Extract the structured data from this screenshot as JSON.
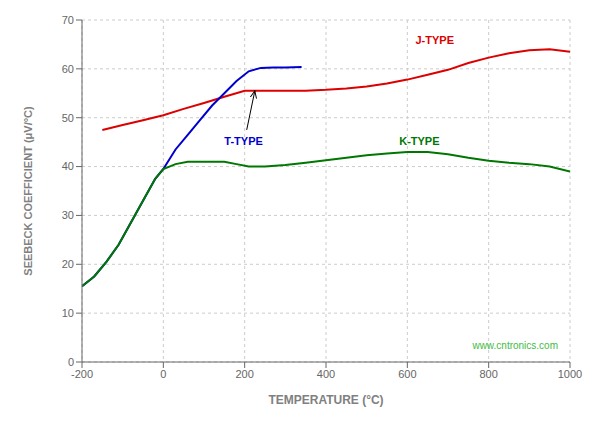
{
  "chart_data": {
    "type": "line",
    "x_label": "TEMPERATURE (°C)",
    "y_label": "SEEBECK COEFFICIENT (μV/°C)",
    "xlim": [
      -200,
      1000
    ],
    "ylim": [
      0,
      70
    ],
    "xticks": [
      -200,
      0,
      200,
      400,
      600,
      800,
      1000
    ],
    "yticks": [
      0,
      10,
      20,
      30,
      40,
      50,
      60,
      70
    ],
    "grid": true,
    "series": [
      {
        "color": "#dd0000",
        "x": [
          -150,
          -100,
          -50,
          0,
          50,
          100,
          150,
          200,
          250,
          300,
          350,
          400,
          450,
          500,
          550,
          600,
          650,
          700,
          750,
          800,
          850,
          900,
          950,
          1000
        ],
        "values": [
          47.5,
          48.5,
          49.5,
          50.5,
          51.8,
          53.0,
          54.3,
          55.5,
          55.5,
          55.5,
          55.5,
          55.7,
          56.0,
          56.4,
          57.0,
          57.8,
          58.8,
          59.8,
          61.2,
          62.3,
          63.2,
          63.8,
          64.0,
          63.5
        ]
      },
      {
        "color": "#0000cc",
        "x": [
          -200,
          -170,
          -140,
          -110,
          -80,
          -50,
          -20,
          0,
          30,
          60,
          90,
          120,
          150,
          180,
          210,
          240,
          270,
          300,
          340
        ],
        "values": [
          15.5,
          17.5,
          20.5,
          24.0,
          28.5,
          33.0,
          37.5,
          39.5,
          43.5,
          46.5,
          49.5,
          52.5,
          55.0,
          57.5,
          59.5,
          60.2,
          60.3,
          60.3,
          60.4
        ]
      },
      {
        "color": "#007700",
        "x": [
          -200,
          -170,
          -140,
          -110,
          -80,
          -50,
          -20,
          0,
          30,
          60,
          90,
          120,
          150,
          180,
          210,
          250,
          300,
          350,
          400,
          450,
          500,
          550,
          600,
          650,
          700,
          750,
          800,
          850,
          900,
          950,
          1000
        ],
        "values": [
          15.5,
          17.5,
          20.5,
          24.0,
          28.5,
          33.0,
          37.5,
          39.5,
          40.5,
          41.0,
          41.0,
          41.0,
          41.0,
          40.5,
          40.0,
          40.0,
          40.3,
          40.8,
          41.3,
          41.8,
          42.3,
          42.7,
          43.0,
          43.0,
          42.5,
          41.8,
          41.2,
          40.8,
          40.5,
          40.0,
          39.0
        ]
      }
    ],
    "annotations": [
      {
        "text": "J-TYPE",
        "x": 620,
        "y": 65.0,
        "color": "#dd0000"
      },
      {
        "text": "T-TYPE",
        "x": 150,
        "y": 44.5,
        "color": "#0000cc",
        "arrow_from": [
          205,
          47.5
        ],
        "arrow_to": [
          225,
          55.5
        ]
      },
      {
        "text": "K-TYPE",
        "x": 580,
        "y": 44.5,
        "color": "#007700"
      },
      {
        "text": "www.cntronics.com",
        "color": "#44bb44"
      }
    ]
  }
}
